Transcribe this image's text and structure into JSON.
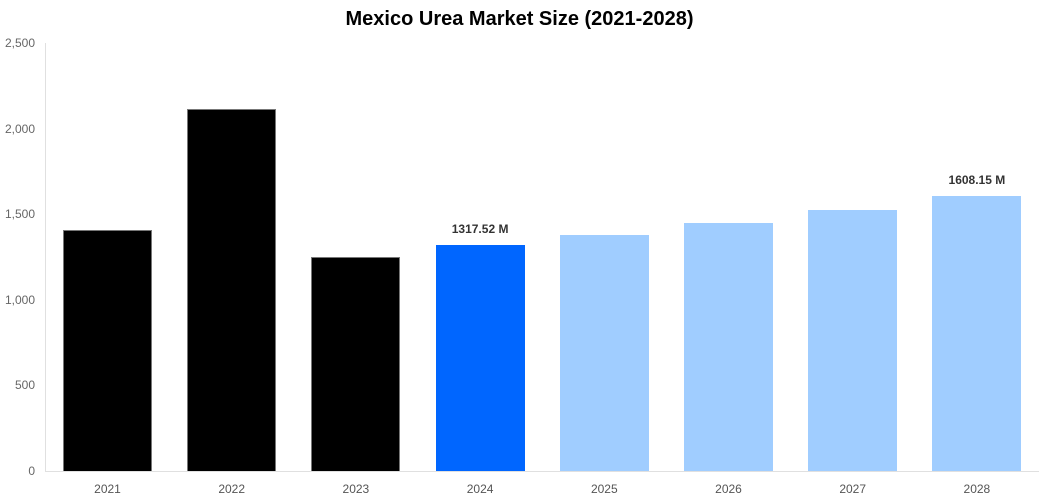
{
  "chart_data": {
    "type": "bar",
    "title": "Mexico Urea Market Size (2021-2028)",
    "xlabel": "",
    "ylabel": "",
    "ylim": [
      0,
      2500
    ],
    "yticks": [
      "0",
      "500",
      "1,000",
      "1,500",
      "2,000",
      "2,500"
    ],
    "categories": [
      "2021",
      "2022",
      "2023",
      "2024",
      "2025",
      "2026",
      "2027",
      "2028"
    ],
    "values": [
      1408,
      2114,
      1250,
      1317.52,
      1380,
      1450,
      1524,
      1608.15
    ],
    "data_labels": {
      "2024": "1317.52 M",
      "2028": "1608.15 M"
    },
    "colors": {
      "historical": "#000000",
      "current": "#0066ff",
      "forecast": "#a0cdff"
    },
    "bar_types": [
      "historical",
      "historical",
      "historical",
      "current",
      "forecast",
      "forecast",
      "forecast",
      "forecast"
    ],
    "grid": false,
    "legend": "none"
  }
}
